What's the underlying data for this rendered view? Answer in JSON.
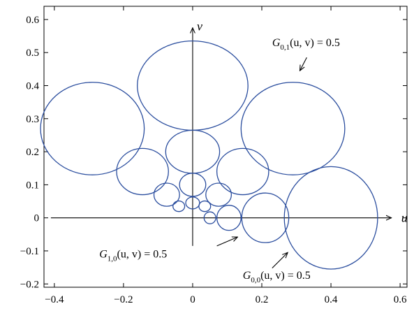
{
  "chart_data": {
    "type": "scatter",
    "xlim": [
      -0.43,
      0.62
    ],
    "ylim": [
      -0.21,
      0.64
    ],
    "xticks": [
      "-0.4",
      "-0.2",
      "0",
      "0.2",
      "0.4",
      "0.6"
    ],
    "yticks": [
      "-0.2",
      "-0.1",
      "0",
      "0.1",
      "0.2",
      "0.3",
      "0.4",
      "0.5",
      "0.6"
    ],
    "xlabel": "u",
    "ylabel": "v",
    "grid": false,
    "curve_color": "#2a4d9e",
    "shapes": [
      {
        "cx": 0.0,
        "cy": 0.4,
        "rx": 0.16,
        "ry": 0.135
      },
      {
        "cx": -0.29,
        "cy": 0.27,
        "rx": 0.15,
        "ry": 0.14
      },
      {
        "cx": 0.29,
        "cy": 0.27,
        "rx": 0.15,
        "ry": 0.14
      },
      {
        "cx": 0.0,
        "cy": 0.2,
        "rx": 0.078,
        "ry": 0.065
      },
      {
        "cx": -0.145,
        "cy": 0.14,
        "rx": 0.075,
        "ry": 0.07
      },
      {
        "cx": 0.145,
        "cy": 0.14,
        "rx": 0.075,
        "ry": 0.07
      },
      {
        "cx": 0.0,
        "cy": 0.1,
        "rx": 0.038,
        "ry": 0.035
      },
      {
        "cx": -0.075,
        "cy": 0.07,
        "rx": 0.037,
        "ry": 0.035
      },
      {
        "cx": 0.075,
        "cy": 0.07,
        "rx": 0.037,
        "ry": 0.035
      },
      {
        "cx": 0.0,
        "cy": 0.045,
        "rx": 0.02,
        "ry": 0.018
      },
      {
        "cx": -0.04,
        "cy": 0.035,
        "rx": 0.017,
        "ry": 0.016
      },
      {
        "cx": 0.035,
        "cy": 0.035,
        "rx": 0.017,
        "ry": 0.016
      },
      {
        "cx": 0.05,
        "cy": 0.0,
        "rx": 0.017,
        "ry": 0.018
      },
      {
        "cx": 0.105,
        "cy": 0.0,
        "rx": 0.035,
        "ry": 0.038
      },
      {
        "cx": 0.21,
        "cy": 0.0,
        "rx": 0.068,
        "ry": 0.075
      },
      {
        "cx": 0.4,
        "cy": 0.0,
        "rx": 0.135,
        "ry": 0.155
      }
    ],
    "annotations": [
      {
        "text": "G0,1(u, v) = 0.5",
        "base": "G",
        "sub": "0,1",
        "rest": "(u, v) = 0.5",
        "tx": 0.23,
        "ty": 0.52,
        "ax1": 0.33,
        "ay1": 0.485,
        "ax2": 0.31,
        "ay2": 0.445
      },
      {
        "text": "G1,0(u, v) = 0.5",
        "base": "G",
        "sub": "1,0",
        "rest": "(u, v) = 0.5",
        "tx": -0.27,
        "ty": -0.12,
        "ax1": 0.07,
        "ay1": -0.085,
        "ax2": 0.13,
        "ay2": -0.058
      },
      {
        "text": "G0,0(u, v) = 0.5",
        "base": "G",
        "sub": "0,0",
        "rest": "(u, v) = 0.5",
        "tx": 0.145,
        "ty": -0.185,
        "ax1": 0.23,
        "ay1": -0.152,
        "ax2": 0.275,
        "ay2": -0.105
      }
    ]
  }
}
